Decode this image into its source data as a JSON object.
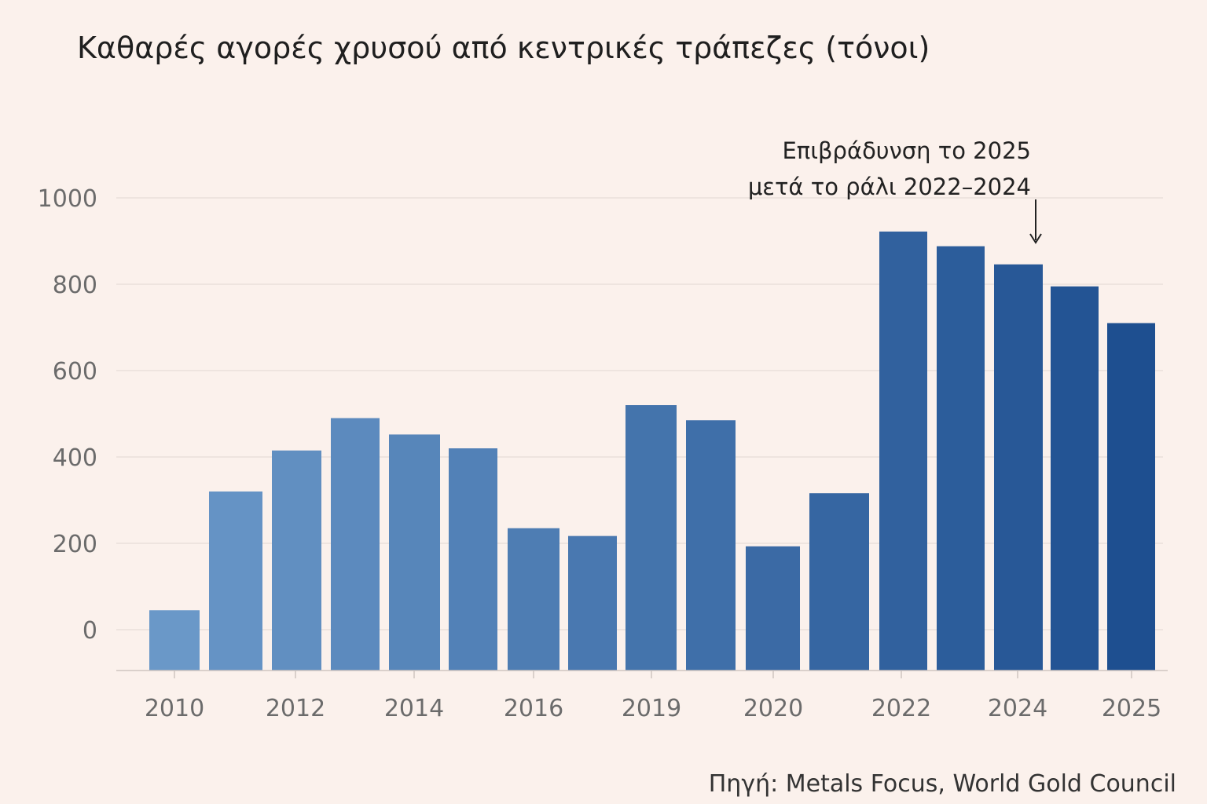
{
  "colors": {
    "background": "#fbf1ec",
    "bar_light": "#6a98c8",
    "bar_dark": "#1e4f90",
    "grid": "#e6dcd7",
    "axis": "#cfc5c0"
  },
  "chart_data": {
    "type": "bar",
    "title": "Καθαρές αγορές χρυσού από κεντρικές τράπεζες (τόνοι)",
    "xlabel": "",
    "ylabel": "",
    "ylim": [
      -100,
      1000
    ],
    "yticks": [
      0,
      200,
      400,
      600,
      800,
      1000
    ],
    "xtick_labels": [
      "2010",
      "2012",
      "2014",
      "2016",
      "2019",
      "2020",
      "2022",
      "2024",
      "2025"
    ],
    "values": [
      45,
      320,
      415,
      490,
      452,
      420,
      235,
      217,
      520,
      485,
      193,
      316,
      922,
      888,
      846,
      795,
      710
    ],
    "grid": true,
    "legend": "none",
    "annotation": {
      "line1": "Επιβράδυνση το 2025",
      "line2": "μετά το ράλι 2022–2024"
    },
    "source": "Πηγή: Metals Focus, World Gold Council"
  }
}
